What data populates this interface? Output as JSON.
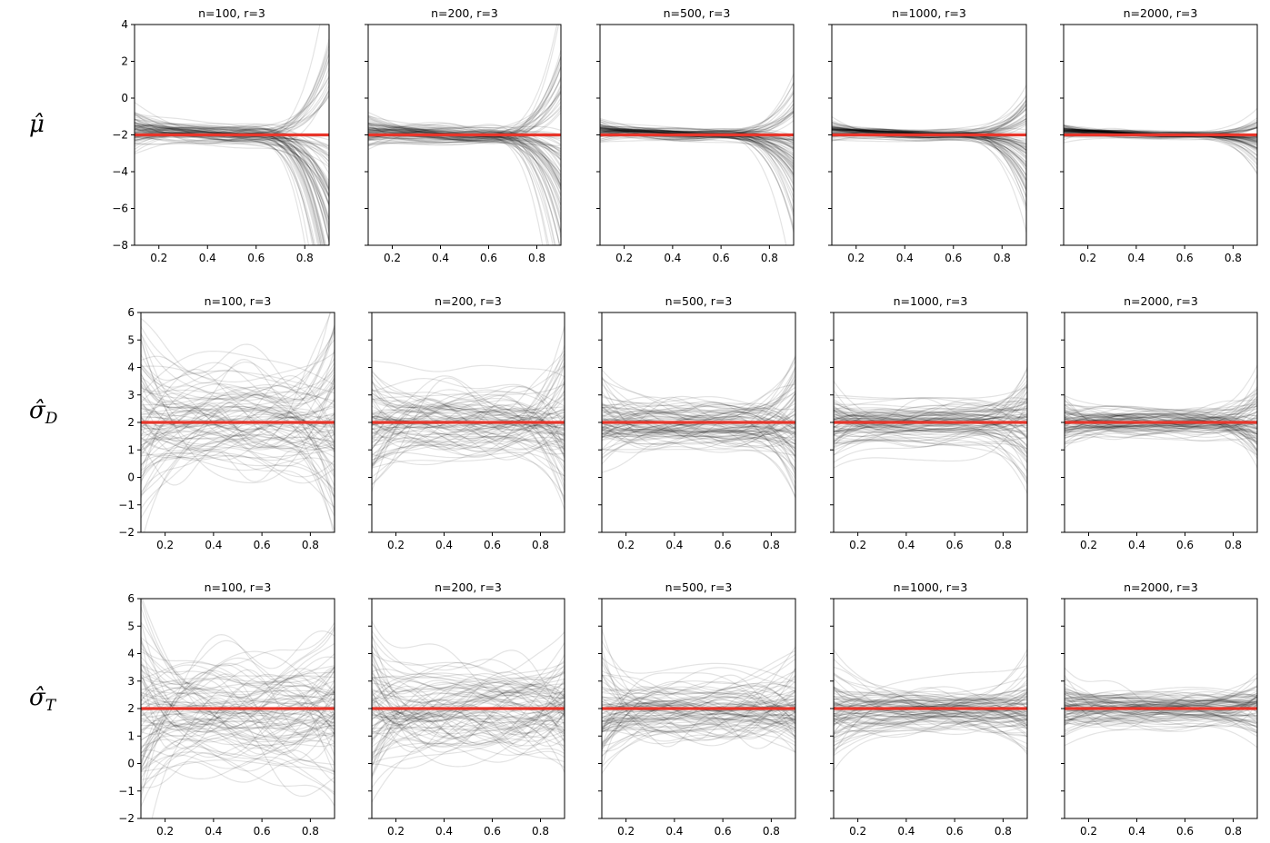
{
  "colors": {
    "truth": "#e8352a",
    "simulation": "#000000"
  },
  "chart_data": {
    "type": "line",
    "layout": "3 rows x 5 columns of panels",
    "grid": false,
    "sample_sizes": [
      "n=100",
      "n=200",
      "n=500",
      "n=1000",
      "n=2000"
    ],
    "rows": [
      {
        "id": "mu",
        "label": "μ̂",
        "sub": "",
        "truth": -2,
        "ylim": [
          -8,
          4
        ],
        "yticks": [
          -8,
          -6,
          -4,
          -2,
          0,
          2,
          4
        ],
        "spread_by_n": [
          0.45,
          0.35,
          0.25,
          0.2,
          0.15
        ],
        "right_tail_by_n": [
          5,
          4,
          2.5,
          1.8,
          0.8
        ]
      },
      {
        "id": "sigmaD",
        "label": "σ̂",
        "sub": "D",
        "truth": 2,
        "ylim": [
          -2,
          6
        ],
        "yticks": [
          -2,
          -1,
          0,
          1,
          2,
          3,
          4,
          5,
          6
        ],
        "spread_by_n": [
          1.5,
          1.1,
          0.7,
          0.55,
          0.45
        ],
        "right_tail_by_n": [
          1.6,
          1.3,
          1.2,
          1.0,
          0.8
        ]
      },
      {
        "id": "sigmaT",
        "label": "σ̂",
        "sub": "T",
        "truth": 2,
        "ylim": [
          -2,
          6
        ],
        "yticks": [
          -2,
          -1,
          0,
          1,
          2,
          3,
          4,
          5,
          6
        ],
        "spread_by_n": [
          1.7,
          1.3,
          0.9,
          0.7,
          0.5
        ],
        "right_tail_by_n": [
          1.0,
          0.8,
          0.6,
          0.5,
          0.4
        ]
      }
    ],
    "panels": [
      [
        {
          "title": "n=100,   r=3",
          "xlim": [
            0.1,
            0.9
          ],
          "xticks": [
            "0.2",
            "0.4",
            "0.6",
            "0.8"
          ]
        },
        {
          "title": "n=200,   r=3",
          "xlim": [
            0.1,
            0.9
          ],
          "xticks": [
            "0.2",
            "0.4",
            "0.6",
            "0.8"
          ]
        },
        {
          "title": "n=500,   r=3",
          "xlim": [
            0.1,
            0.9
          ],
          "xticks": [
            "0.2",
            "0.4",
            "0.6",
            "0.8"
          ]
        },
        {
          "title": "n=1000,   r=3",
          "xlim": [
            0.1,
            0.9
          ],
          "xticks": [
            "0.2",
            "0.4",
            "0.6",
            "0.8"
          ]
        },
        {
          "title": "n=2000,   r=3",
          "xlim": [
            0.1,
            0.9
          ],
          "xticks": [
            "0.2",
            "0.4",
            "0.6",
            "0.8"
          ]
        }
      ],
      [
        {
          "title": "n=100,   r=3",
          "xlim": [
            0.1,
            0.9
          ],
          "xticks": [
            "0.2",
            "0.4",
            "0.6",
            "0.8"
          ]
        },
        {
          "title": "n=200,   r=3",
          "xlim": [
            0.1,
            0.9
          ],
          "xticks": [
            "0.2",
            "0.4",
            "0.6",
            "0.8"
          ]
        },
        {
          "title": "n=500,   r=3",
          "xlim": [
            0.1,
            0.9
          ],
          "xticks": [
            "0.2",
            "0.4",
            "0.6",
            "0.8"
          ]
        },
        {
          "title": "n=1000,   r=3",
          "xlim": [
            0.1,
            0.9
          ],
          "xticks": [
            "0.2",
            "0.4",
            "0.6",
            "0.8"
          ]
        },
        {
          "title": "n=2000,   r=3",
          "xlim": [
            0.1,
            0.9
          ],
          "xticks": [
            "0.2",
            "0.4",
            "0.6",
            "0.8"
          ]
        }
      ],
      [
        {
          "title": "n=100,   r=3",
          "xlim": [
            0.1,
            0.9
          ],
          "xticks": [
            "0.2",
            "0.4",
            "0.6",
            "0.8"
          ]
        },
        {
          "title": "n=200,   r=3",
          "xlim": [
            0.1,
            0.9
          ],
          "xticks": [
            "0.2",
            "0.4",
            "0.6",
            "0.8"
          ]
        },
        {
          "title": "n=500,   r=3",
          "xlim": [
            0.1,
            0.9
          ],
          "xticks": [
            "0.2",
            "0.4",
            "0.6",
            "0.8"
          ]
        },
        {
          "title": "n=1000,   r=3",
          "xlim": [
            0.1,
            0.9
          ],
          "xticks": [
            "0.2",
            "0.4",
            "0.6",
            "0.8"
          ]
        },
        {
          "title": "n=2000,   r=3",
          "xlim": [
            0.1,
            0.9
          ],
          "xticks": [
            "0.2",
            "0.4",
            "0.6",
            "0.8"
          ]
        }
      ]
    ],
    "series": [
      {
        "name": "",
        "kind": "simulated estimates (≈100 curves per panel)"
      },
      {
        "name": "",
        "kind": "true value (horizontal)"
      }
    ]
  }
}
